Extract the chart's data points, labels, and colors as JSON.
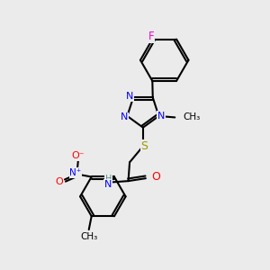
{
  "bg_color": "#ebebeb",
  "atom_colors": {
    "N": "#0000ff",
    "O": "#ff0000",
    "S": "#999900",
    "F": "#ff00cc",
    "H": "#5a9090",
    "C": "#000000"
  },
  "lw": 1.5,
  "xlim": [
    0,
    10
  ],
  "ylim": [
    0,
    10
  ]
}
